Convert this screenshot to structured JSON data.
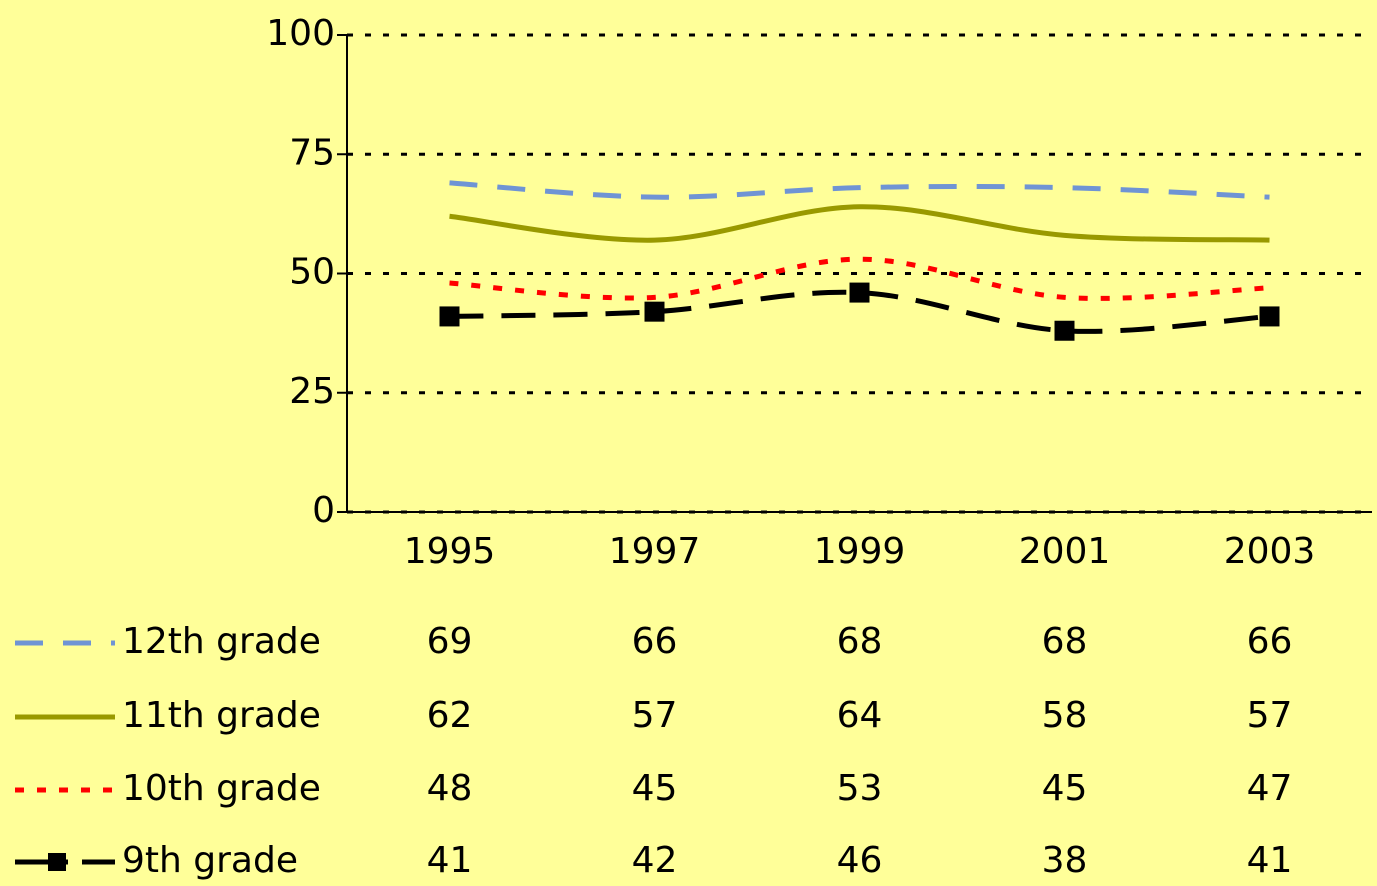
{
  "chart_data": {
    "type": "line",
    "categories": [
      "1995",
      "1997",
      "1999",
      "2001",
      "2003"
    ],
    "series": [
      {
        "name": "12th grade",
        "color": "#6f94d4",
        "style": "dashed",
        "values": [
          69,
          66,
          68,
          68,
          66
        ]
      },
      {
        "name": "11th grade",
        "color": "#999900",
        "style": "solid",
        "values": [
          62,
          57,
          64,
          58,
          57
        ]
      },
      {
        "name": "10th grade",
        "color": "#ff0000",
        "style": "dotted",
        "values": [
          48,
          45,
          53,
          45,
          47
        ]
      },
      {
        "name": "9th grade",
        "color": "#000000",
        "style": "dashed-square",
        "values": [
          41,
          42,
          46,
          38,
          41
        ]
      }
    ],
    "ylim": [
      0,
      100
    ],
    "yticks": [
      0,
      25,
      50,
      75,
      100
    ],
    "grid": true
  }
}
